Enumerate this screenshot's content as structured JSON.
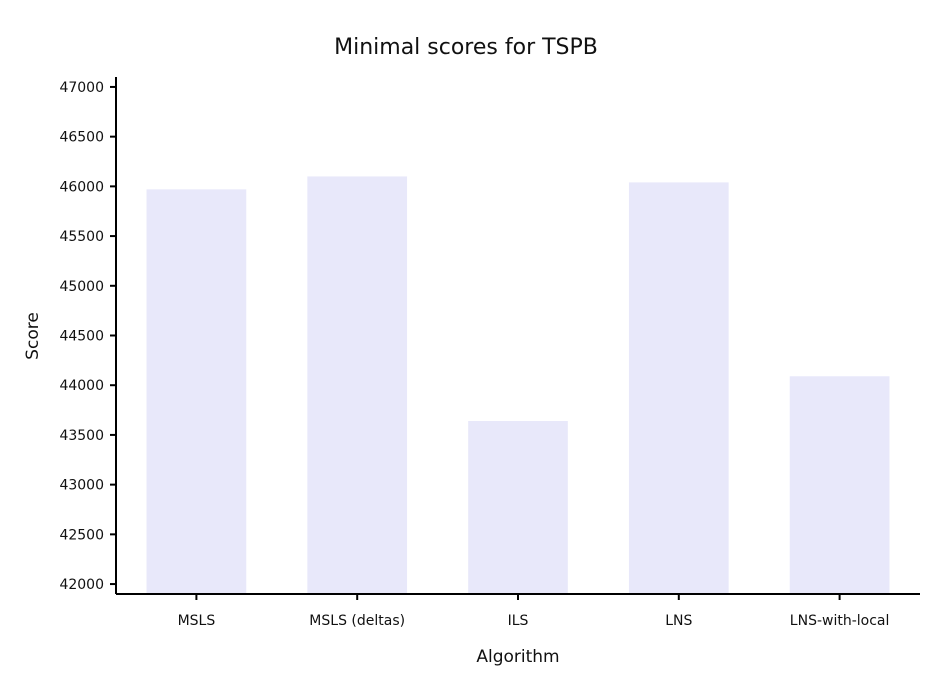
{
  "chart_data": {
    "type": "bar",
    "title": "Minimal scores for TSPB",
    "xlabel": "Algorithm",
    "ylabel": "Score",
    "categories": [
      "MSLS",
      "MSLS (deltas)",
      "ILS",
      "LNS",
      "LNS-with-local"
    ],
    "values": [
      45970,
      46100,
      43640,
      46040,
      44090
    ],
    "ylim": [
      41900,
      47100
    ],
    "yticks": [
      42000,
      42500,
      43000,
      43500,
      44000,
      44500,
      45000,
      45500,
      46000,
      46500,
      47000
    ],
    "ytick_labels": [
      "42000",
      "42500",
      "43000",
      "43500",
      "44000",
      "44500",
      "45000",
      "45500",
      "46000",
      "46500",
      "47000"
    ],
    "bar_color": "#e8e8fa",
    "grid": false,
    "legend": "none"
  }
}
